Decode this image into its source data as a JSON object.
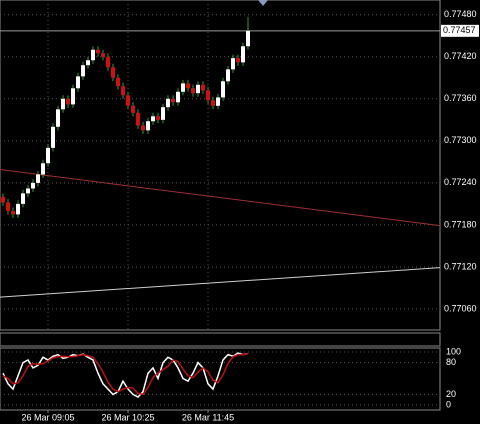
{
  "chart_data": [
    {
      "type": "candlestick",
      "open": [
        0.7722,
        0.77212,
        0.772,
        0.77195,
        0.7721,
        0.77225,
        0.77232,
        0.7724,
        0.77252,
        0.77268,
        0.7729,
        0.7732,
        0.77345,
        0.7736,
        0.77352,
        0.77375,
        0.77392,
        0.77408,
        0.77415,
        0.7743,
        0.77425,
        0.7742,
        0.77405,
        0.7739,
        0.77378,
        0.77365,
        0.7735,
        0.7734,
        0.77322,
        0.77315,
        0.77328,
        0.77335,
        0.7733,
        0.77348,
        0.7736,
        0.77355,
        0.7737,
        0.77382,
        0.77375,
        0.77368,
        0.7738,
        0.77372,
        0.77358,
        0.7735,
        0.77362,
        0.77385,
        0.77402,
        0.77418,
        0.77412,
        0.77435
      ],
      "high": [
        0.77225,
        0.77217,
        0.77205,
        0.77215,
        0.7723,
        0.77237,
        0.77245,
        0.77257,
        0.77273,
        0.77295,
        0.77325,
        0.7735,
        0.77365,
        0.77365,
        0.7738,
        0.77397,
        0.77413,
        0.7742,
        0.77435,
        0.77435,
        0.7743,
        0.77425,
        0.7741,
        0.77395,
        0.77383,
        0.7737,
        0.77355,
        0.77345,
        0.77327,
        0.77333,
        0.7734,
        0.7734,
        0.77353,
        0.77365,
        0.77365,
        0.77375,
        0.77387,
        0.77387,
        0.7738,
        0.77385,
        0.77385,
        0.77377,
        0.77363,
        0.77367,
        0.7739,
        0.77407,
        0.77423,
        0.77423,
        0.7744,
        0.77477
      ],
      "low": [
        0.77207,
        0.77195,
        0.7719,
        0.7719,
        0.77205,
        0.7722,
        0.77227,
        0.77235,
        0.77247,
        0.77263,
        0.77285,
        0.77315,
        0.7734,
        0.77347,
        0.77347,
        0.7737,
        0.77387,
        0.77403,
        0.7741,
        0.7742,
        0.77415,
        0.774,
        0.77385,
        0.77373,
        0.7736,
        0.77345,
        0.77335,
        0.77317,
        0.7731,
        0.7731,
        0.77323,
        0.77325,
        0.77325,
        0.77343,
        0.7735,
        0.7735,
        0.77365,
        0.7737,
        0.77363,
        0.77363,
        0.77367,
        0.77353,
        0.77345,
        0.77345,
        0.77357,
        0.7738,
        0.77397,
        0.77407,
        0.77407,
        0.7743
      ],
      "close": [
        0.77212,
        0.772,
        0.77195,
        0.7721,
        0.77225,
        0.77232,
        0.7724,
        0.77252,
        0.77268,
        0.7729,
        0.7732,
        0.77345,
        0.7736,
        0.77352,
        0.77375,
        0.77392,
        0.77408,
        0.77415,
        0.7743,
        0.77425,
        0.7742,
        0.77405,
        0.7739,
        0.77378,
        0.77365,
        0.7735,
        0.7734,
        0.77322,
        0.77315,
        0.77328,
        0.77335,
        0.7733,
        0.77348,
        0.7736,
        0.77355,
        0.7737,
        0.77382,
        0.77375,
        0.77368,
        0.7738,
        0.77372,
        0.77358,
        0.7735,
        0.77362,
        0.77385,
        0.77402,
        0.77418,
        0.77412,
        0.77435,
        0.77457
      ],
      "up_color": "#ffffff",
      "down_color": "#d01010",
      "ylim": [
        0.7703,
        0.77501
      ],
      "yticks": [
        {
          "value": 0.7748,
          "label": "0.77480"
        },
        {
          "value": 0.7742,
          "label": "0.77420"
        },
        {
          "value": 0.7736,
          "label": "0.77360"
        },
        {
          "value": 0.773,
          "label": "0.77300"
        },
        {
          "value": 0.7724,
          "label": "0.77240"
        },
        {
          "value": 0.7718,
          "label": "0.77180"
        },
        {
          "value": 0.7712,
          "label": "0.77120"
        },
        {
          "value": 0.7706,
          "label": "0.77060"
        }
      ],
      "xticks": [
        {
          "value": 9,
          "label": "26 Mar 09:05"
        },
        {
          "value": 25,
          "label": "26 Mar 10:25"
        },
        {
          "value": 41,
          "label": "26 Mar 11:45"
        }
      ],
      "current_price": {
        "value": 0.77457,
        "label": "0.77457"
      },
      "trendlines": [
        {
          "color": "#a03030",
          "y": [
            0.77259,
            0.77179
          ]
        },
        {
          "color": "#d0d0d0",
          "y": [
            0.77077,
            0.77119
          ]
        }
      ],
      "grid": true
    },
    {
      "type": "line",
      "series": [
        {
          "color": "#ffffff",
          "values": [
            60,
            40,
            30,
            55,
            80,
            85,
            70,
            75,
            90,
            85,
            92,
            95,
            88,
            90,
            95,
            93,
            96,
            90,
            85,
            60,
            40,
            30,
            20,
            25,
            45,
            30,
            20,
            15,
            25,
            60,
            70,
            50,
            80,
            90,
            85,
            70,
            50,
            45,
            60,
            80,
            70,
            40,
            30,
            55,
            85,
            95,
            92,
            98,
            95,
            97
          ]
        },
        {
          "color": "#c01010",
          "values": [
            55,
            50,
            40,
            42,
            55,
            73,
            78,
            77,
            78,
            83,
            89,
            91,
            92,
            91,
            91,
            93,
            95,
            93,
            90,
            78,
            62,
            43,
            30,
            25,
            30,
            33,
            32,
            22,
            20,
            33,
            52,
            60,
            67,
            73,
            85,
            82,
            68,
            55,
            52,
            62,
            70,
            63,
            47,
            42,
            57,
            78,
            91,
            95,
            95,
            97
          ]
        }
      ],
      "ylim": [
        0,
        100
      ],
      "yticks": [
        100,
        80,
        20,
        0
      ]
    }
  ]
}
